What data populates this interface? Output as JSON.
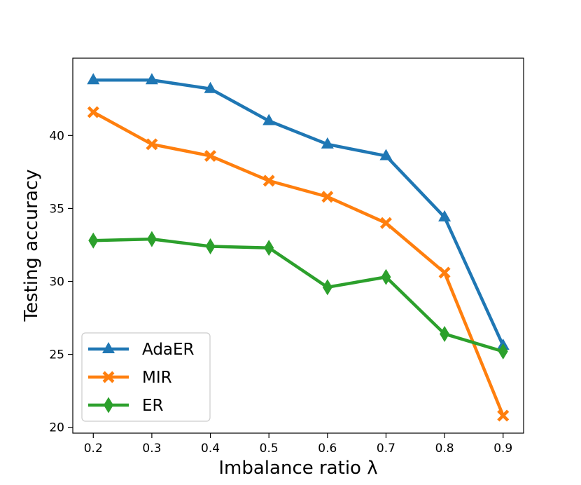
{
  "chart_data": {
    "type": "line",
    "title": "",
    "xlabel": "Imbalance ratio λ",
    "ylabel": "Testing accuracy",
    "x": [
      0.2,
      0.3,
      0.4,
      0.5,
      0.6,
      0.7,
      0.8,
      0.9
    ],
    "x_tick_labels": [
      "0.2",
      "0.3",
      "0.4",
      "0.5",
      "0.6",
      "0.7",
      "0.8",
      "0.9"
    ],
    "y_ticks": [
      20,
      25,
      30,
      35,
      40
    ],
    "y_tick_labels": [
      "20",
      "25",
      "30",
      "35",
      "40"
    ],
    "xlim": [
      0.165,
      0.935
    ],
    "ylim": [
      19.6,
      45.3
    ],
    "grid": false,
    "legend_position": "bottom-left",
    "series": [
      {
        "name": "AdaER",
        "color": "#1f77b4",
        "marker": "triangle",
        "values": [
          43.8,
          43.8,
          43.2,
          41.0,
          39.4,
          38.6,
          34.4,
          25.6
        ]
      },
      {
        "name": "MIR",
        "color": "#ff7f0e",
        "marker": "x",
        "values": [
          41.6,
          39.4,
          38.6,
          36.9,
          35.8,
          34.0,
          30.6,
          20.8
        ]
      },
      {
        "name": "ER",
        "color": "#2ca02c",
        "marker": "diamond",
        "values": [
          32.8,
          32.9,
          32.4,
          32.3,
          29.6,
          30.3,
          26.4,
          25.2
        ]
      }
    ]
  }
}
